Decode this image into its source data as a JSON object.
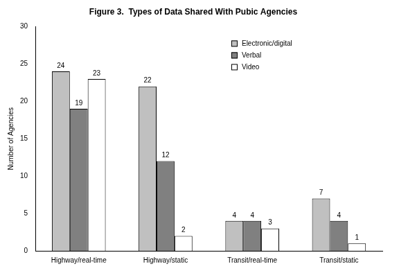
{
  "chart_data": {
    "type": "bar",
    "title": "Figure 3.  Types of Data Shared With Pubic Agencies",
    "y_label": "Number of Agencies",
    "categories": [
      "Highway/real-time",
      "Highway/static",
      "Transit/real-time",
      "Transit/static"
    ],
    "series": [
      {
        "name": "Electronic/digital",
        "color": "#c0c0c0",
        "values": [
          24,
          22,
          4,
          7
        ]
      },
      {
        "name": "Verbal",
        "color": "#808080",
        "values": [
          19,
          12,
          4,
          4
        ]
      },
      {
        "name": "Video",
        "color": "#ffffff",
        "values": [
          23,
          2,
          3,
          1
        ]
      }
    ],
    "ylim": [
      0,
      30
    ],
    "yticks": [
      0,
      5,
      10,
      15,
      20,
      25,
      30
    ],
    "grid": false,
    "legend": "upper right",
    "data_labels": true
  }
}
